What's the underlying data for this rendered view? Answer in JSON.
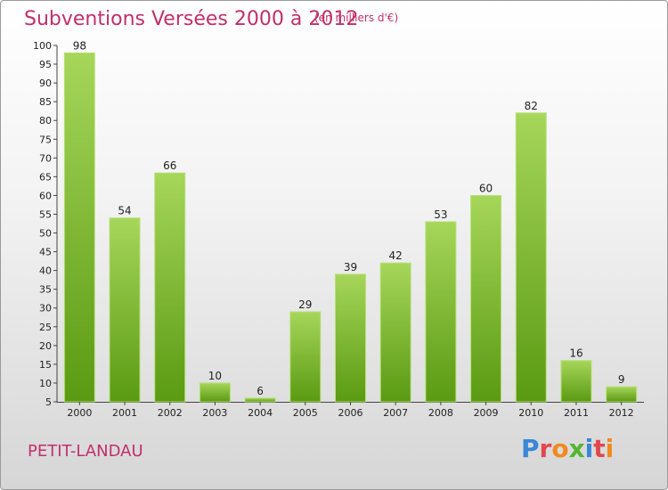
{
  "header": {
    "title": "Subventions Versées 2000 à 2012",
    "subtitle": "(en milliers d'€)"
  },
  "footer": {
    "place": "PETIT-LANDAU",
    "logo_text": "Proxiti"
  },
  "colors": {
    "title": "#c0306a",
    "bar_light": "#a6d65a",
    "bar_dark": "#5a9a12",
    "logo": [
      "#3a86d6",
      "#f08a1c",
      "#55b530",
      "#e0484e"
    ]
  },
  "chart_data": {
    "type": "bar",
    "title": "Subventions Versées 2000 à 2012",
    "categories": [
      "2000",
      "2001",
      "2002",
      "2003",
      "2004",
      "2005",
      "2006",
      "2007",
      "2008",
      "2009",
      "2010",
      "2011",
      "2012"
    ],
    "values": [
      98,
      54,
      66,
      10,
      6,
      29,
      39,
      42,
      53,
      60,
      82,
      16,
      9
    ],
    "ylim": [
      5,
      100
    ],
    "yticks": [
      5,
      10,
      15,
      20,
      25,
      30,
      35,
      40,
      45,
      50,
      55,
      60,
      65,
      70,
      75,
      80,
      85,
      90,
      95,
      100
    ],
    "grid": false,
    "legend": "none"
  }
}
